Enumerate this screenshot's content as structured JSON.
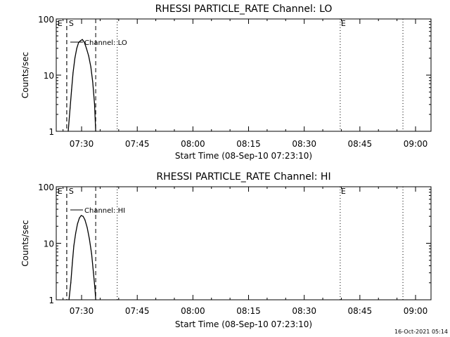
{
  "timestamp": "16-Oct-2021 05:14",
  "chart_data": [
    {
      "type": "line",
      "title": "RHESSI PARTICLE_RATE Channel: LO",
      "xlabel": "Start Time (08-Sep-10 07:23:10)",
      "ylabel": "Counts/sec",
      "y_scale": "log",
      "ylim": [
        1,
        100
      ],
      "xlim_min_of_day": [
        443.17,
        544.17
      ],
      "x_ticks": [
        {
          "min": 450,
          "label": "07:30"
        },
        {
          "min": 465,
          "label": "07:45"
        },
        {
          "min": 480,
          "label": "08:00"
        },
        {
          "min": 495,
          "label": "08:15"
        },
        {
          "min": 510,
          "label": "08:30"
        },
        {
          "min": 525,
          "label": "08:45"
        },
        {
          "min": 540,
          "label": "09:00"
        }
      ],
      "y_ticks": [
        {
          "value": 1,
          "label": "1"
        },
        {
          "value": 10,
          "label": "10"
        },
        {
          "value": 100,
          "label": "100"
        }
      ],
      "legend": {
        "label": "Channel: LO",
        "placement": "top-left"
      },
      "markers": [
        {
          "min": 446.0,
          "label": "E",
          "style": "dashed"
        },
        {
          "min": 446.0,
          "label": "S",
          "style": "dashed"
        },
        {
          "min": 453.8,
          "label": "",
          "style": "dashed"
        },
        {
          "min": 459.6,
          "label": "",
          "style": "dotted"
        },
        {
          "min": 519.7,
          "label": "E",
          "style": "dotted"
        },
        {
          "min": 536.6,
          "label": "",
          "style": "dotted"
        }
      ],
      "series": [
        {
          "x": [
            446.4,
            446.9,
            447.3,
            447.7,
            448.2,
            448.7,
            449.2,
            449.7,
            450.2,
            450.7,
            451.3,
            451.9,
            452.5,
            453.0,
            453.5,
            453.8
          ],
          "y": [
            1.0,
            2.6,
            5.5,
            11.0,
            20.0,
            30.0,
            38.0,
            41.0,
            43.0,
            39.0,
            30.0,
            22.0,
            14.0,
            7.5,
            3.0,
            1.0
          ]
        }
      ]
    },
    {
      "type": "line",
      "title": "RHESSI PARTICLE_RATE Channel: HI",
      "xlabel": "Start Time (08-Sep-10 07:23:10)",
      "ylabel": "Counts/sec",
      "y_scale": "log",
      "ylim": [
        1,
        100
      ],
      "xlim_min_of_day": [
        443.17,
        544.17
      ],
      "x_ticks": [
        {
          "min": 450,
          "label": "07:30"
        },
        {
          "min": 465,
          "label": "07:45"
        },
        {
          "min": 480,
          "label": "08:00"
        },
        {
          "min": 495,
          "label": "08:15"
        },
        {
          "min": 510,
          "label": "08:30"
        },
        {
          "min": 525,
          "label": "08:45"
        },
        {
          "min": 540,
          "label": "09:00"
        }
      ],
      "y_ticks": [
        {
          "value": 1,
          "label": "1"
        },
        {
          "value": 10,
          "label": "10"
        },
        {
          "value": 100,
          "label": "100"
        }
      ],
      "legend": {
        "label": "Channel: HI",
        "placement": "top-left"
      },
      "markers": [
        {
          "min": 446.0,
          "label": "E",
          "style": "dashed"
        },
        {
          "min": 446.0,
          "label": "S",
          "style": "dashed"
        },
        {
          "min": 453.8,
          "label": "",
          "style": "dashed"
        },
        {
          "min": 459.6,
          "label": "",
          "style": "dotted"
        },
        {
          "min": 519.7,
          "label": "E",
          "style": "dotted"
        },
        {
          "min": 536.6,
          "label": "",
          "style": "dotted"
        }
      ],
      "series": [
        {
          "x": [
            446.6,
            447.1,
            447.5,
            447.9,
            448.4,
            448.9,
            449.4,
            449.9,
            450.4,
            450.9,
            451.5,
            452.1,
            452.7,
            453.2,
            453.6,
            453.8
          ],
          "y": [
            1.0,
            2.0,
            4.5,
            9.0,
            15.0,
            22.0,
            28.0,
            31.0,
            30.0,
            26.0,
            19.0,
            12.0,
            6.5,
            3.0,
            1.6,
            1.0
          ]
        }
      ]
    }
  ]
}
